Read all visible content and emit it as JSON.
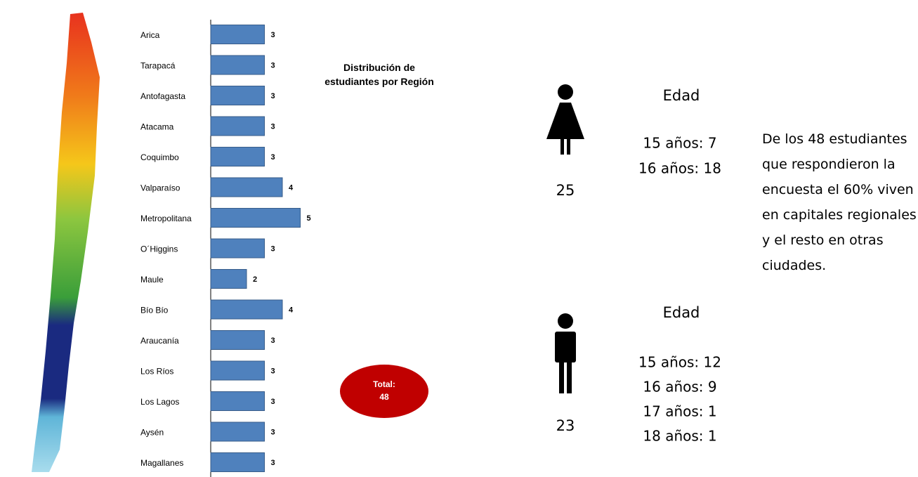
{
  "chart_data": {
    "type": "hbar",
    "title": "Distribución de estudiantes por Región",
    "categories": [
      "Arica",
      "Tarapacá",
      "Antofagasta",
      "Atacama",
      "Coquimbo",
      "Valparaíso",
      "Metropolitana",
      "O´Higgins",
      "Maule",
      "Bío Bío",
      "Araucanía",
      "Los Ríos",
      "Los Lagos",
      "Aysén",
      "Magallanes"
    ],
    "values": [
      3,
      3,
      3,
      3,
      3,
      4,
      5,
      3,
      2,
      4,
      3,
      3,
      3,
      3,
      3
    ],
    "color": "#4f81bd",
    "total": {
      "label": "Total:",
      "value": 48
    }
  },
  "female": {
    "count": 25,
    "age_title": "Edad",
    "ages": [
      "15 años: 7",
      "16 años: 18"
    ]
  },
  "male": {
    "count": 23,
    "age_title": "Edad",
    "ages": [
      "15 años: 12",
      "16 años: 9",
      "17 años: 1",
      "18 años: 1"
    ]
  },
  "note": "De los 48 estudiantes que respondieron la encuesta el 60% viven en capitales regionales y el resto en otras ciudades."
}
